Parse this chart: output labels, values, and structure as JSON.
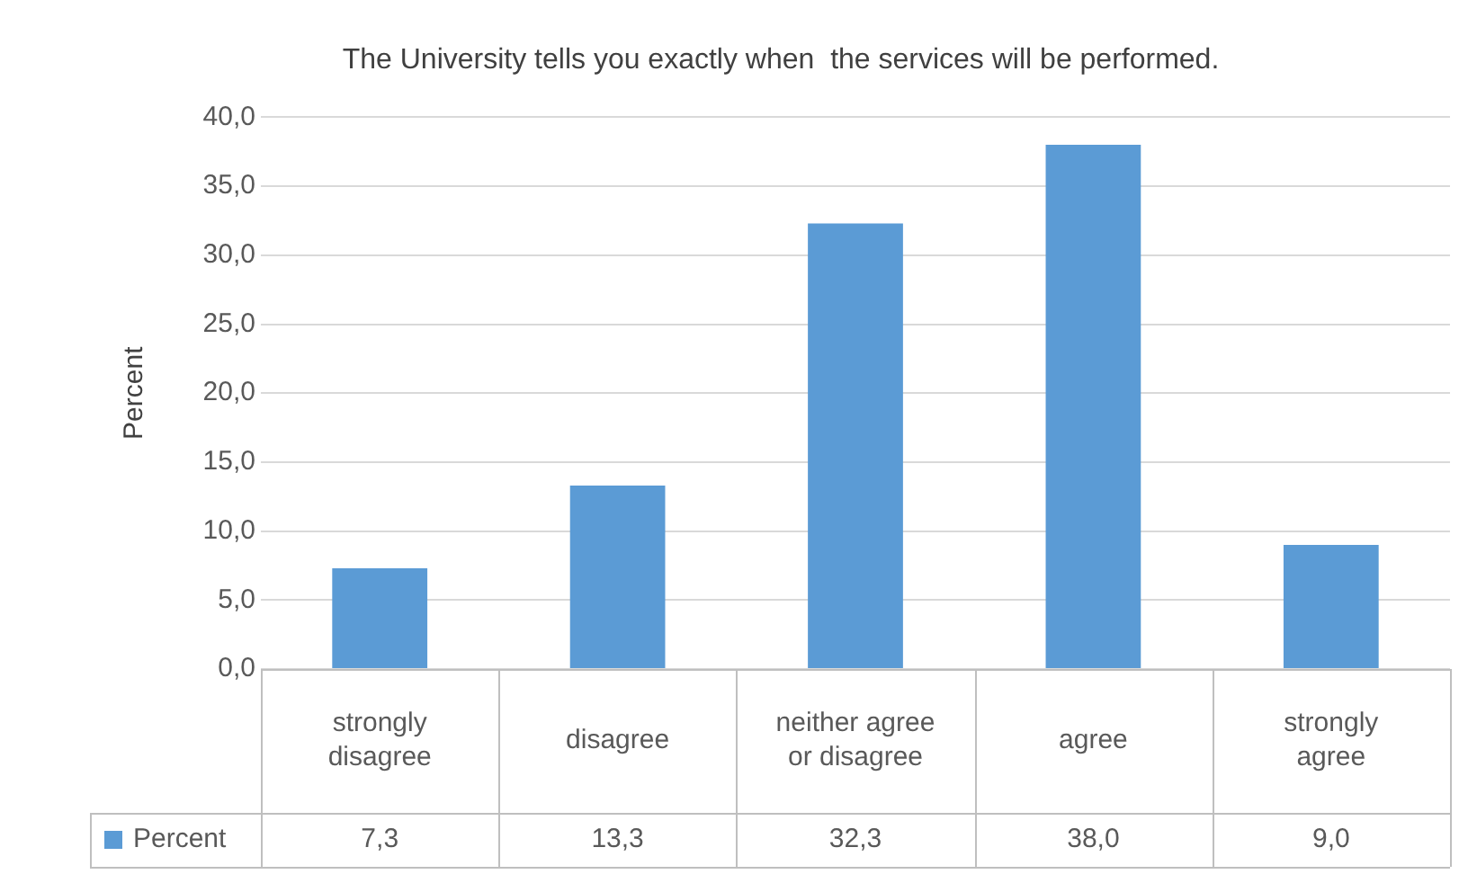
{
  "chart_data": {
    "type": "bar",
    "title": "The University tells you exactly when  the services will be performed.",
    "ylabel": "Percent",
    "categories": [
      "strongly disagree",
      "disagree",
      "neither agree or disagree",
      "agree",
      "strongly agree"
    ],
    "series": [
      {
        "name": "Percent",
        "color": "#5b9bd5",
        "values": [
          7.3,
          13.3,
          32.3,
          38.0,
          9.0
        ],
        "value_labels": [
          "7,3",
          "13,3",
          "32,3",
          "38,0",
          "9,0"
        ]
      }
    ],
    "ylim": [
      0,
      40
    ],
    "yticks": [
      {
        "value": 0,
        "label": "0,0"
      },
      {
        "value": 5,
        "label": "5,0"
      },
      {
        "value": 10,
        "label": "10,0"
      },
      {
        "value": 15,
        "label": "15,0"
      },
      {
        "value": 20,
        "label": "20,0"
      },
      {
        "value": 25,
        "label": "25,0"
      },
      {
        "value": 30,
        "label": "30,0"
      },
      {
        "value": 35,
        "label": "35,0"
      },
      {
        "value": 40,
        "label": "40,0"
      }
    ],
    "grid": "y",
    "legend": "bottom"
  }
}
